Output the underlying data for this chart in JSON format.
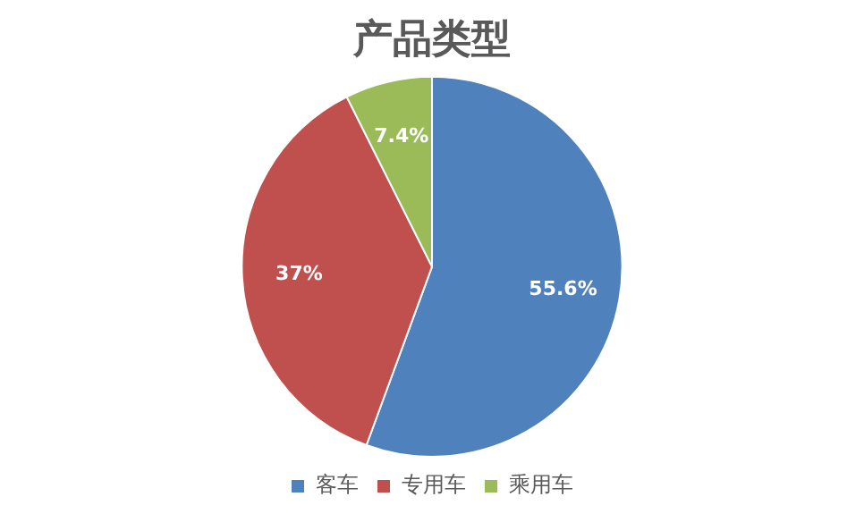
{
  "chart_data": {
    "type": "pie",
    "title": "产品类型",
    "categories": [
      "客车",
      "专用车",
      "乘用车"
    ],
    "values": [
      55.6,
      37,
      7.4
    ],
    "colors": [
      "#4f81bd",
      "#c0504d",
      "#9bbb59"
    ],
    "value_labels": [
      "55.6%",
      "37%",
      "7.4%"
    ],
    "legend": "bottom"
  }
}
